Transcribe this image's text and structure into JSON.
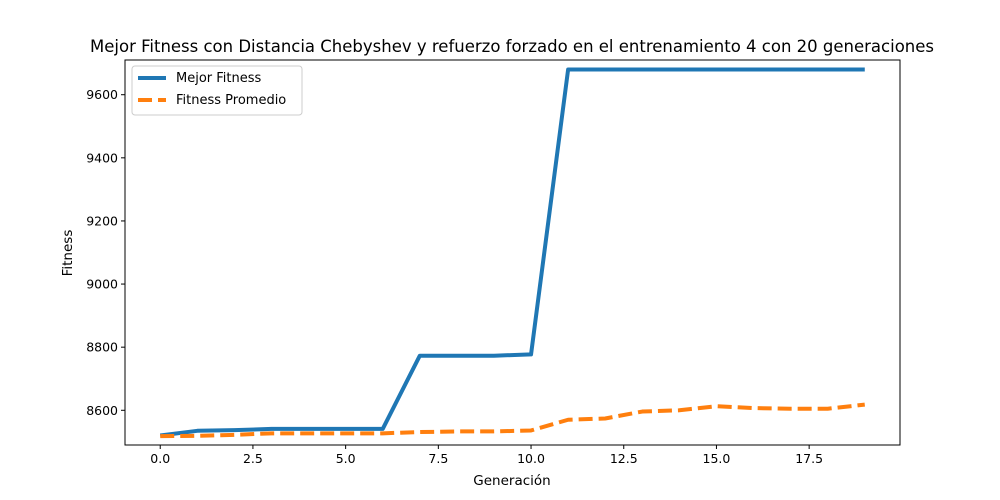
{
  "chart_data": {
    "type": "line",
    "title": "Mejor Fitness con Distancia Chebyshev y refuerzo forzado en el entrenamiento 4 con 20 generaciones",
    "xlabel": "Generación",
    "ylabel": "Fitness",
    "xlim": [
      -0.95,
      19.95
    ],
    "ylim": [
      8490,
      9710
    ],
    "xticks": [
      "0.0",
      "2.5",
      "5.0",
      "7.5",
      "10.0",
      "12.5",
      "15.0",
      "17.5"
    ],
    "xtick_values": [
      0,
      2.5,
      5,
      7.5,
      10,
      12.5,
      15,
      17.5
    ],
    "yticks": [
      "8600",
      "8800",
      "9000",
      "9200",
      "9400",
      "9600"
    ],
    "ytick_values": [
      8600,
      8800,
      9000,
      9200,
      9400,
      9600
    ],
    "grid": false,
    "legend_position": "top-left",
    "x": [
      0,
      1,
      2,
      3,
      4,
      5,
      6,
      7,
      8,
      9,
      10,
      11,
      12,
      13,
      14,
      15,
      16,
      17,
      18,
      19
    ],
    "series": [
      {
        "name": "Mejor Fitness",
        "color": "#1f77b4",
        "style": "solid",
        "values": [
          8520,
          8535,
          8537,
          8541,
          8541,
          8541,
          8541,
          8773,
          8773,
          8773,
          8777,
          9680,
          9680,
          9680,
          9680,
          9680,
          9680,
          9680,
          9680,
          9680
        ]
      },
      {
        "name": "Fitness Promedio",
        "color": "#ff7f0e",
        "style": "dashed",
        "values": [
          8518,
          8519,
          8522,
          8527,
          8527,
          8527,
          8527,
          8531,
          8533,
          8533,
          8536,
          8570,
          8574,
          8596,
          8600,
          8613,
          8607,
          8605,
          8605,
          8618
        ]
      }
    ]
  }
}
